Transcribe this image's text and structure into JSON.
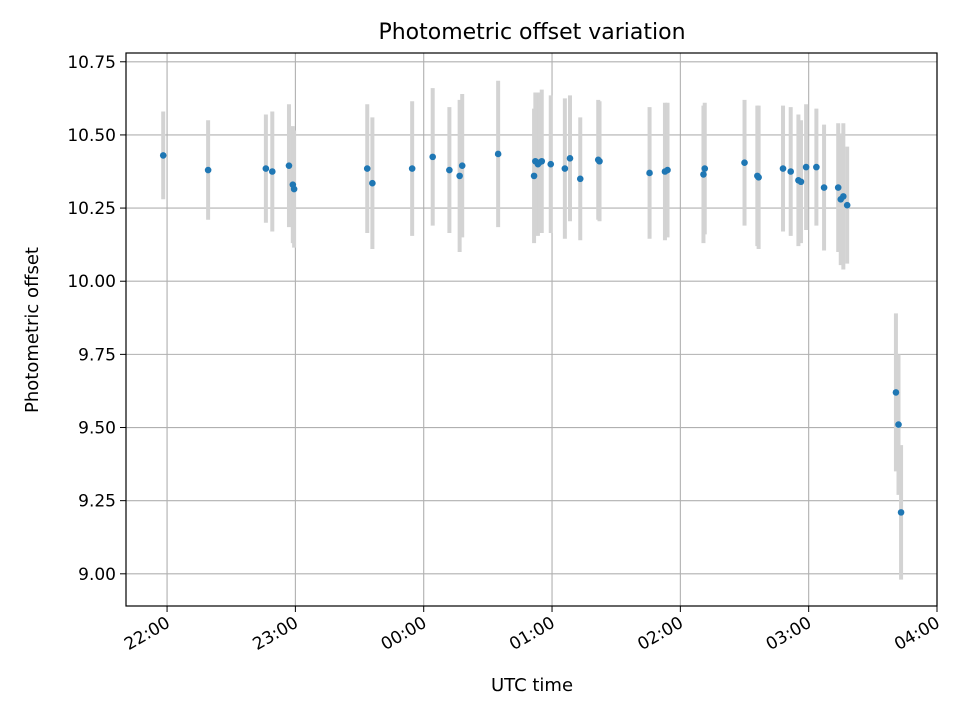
{
  "chart_data": {
    "type": "scatter",
    "title": "Photometric offset variation",
    "xlabel": "UTC time",
    "ylabel": "Photometric offset",
    "x_unit": "hours since 00:00 UTC (negative = previous day)",
    "xlim": [
      -2.32,
      4.0
    ],
    "ylim": [
      8.89,
      10.78
    ],
    "x_ticks": [
      {
        "value": -2,
        "label": "22:00"
      },
      {
        "value": -1,
        "label": "23:00"
      },
      {
        "value": 0,
        "label": "00:00"
      },
      {
        "value": 1,
        "label": "01:00"
      },
      {
        "value": 2,
        "label": "02:00"
      },
      {
        "value": 3,
        "label": "03:00"
      },
      {
        "value": 4,
        "label": "04:00"
      }
    ],
    "y_ticks": [
      9.0,
      9.25,
      9.5,
      9.75,
      10.0,
      10.25,
      10.5,
      10.75
    ],
    "y_tick_labels": [
      "9.00",
      "9.25",
      "9.50",
      "9.75",
      "10.00",
      "10.25",
      "10.50",
      "10.75"
    ],
    "grid": true,
    "marker_color": "#1f77b4",
    "errorbar_color": "#d3d3d3",
    "points": [
      {
        "time": "21:58",
        "x": -2.03,
        "y": 10.43,
        "err": 0.15
      },
      {
        "time": "22:20",
        "x": -1.68,
        "y": 10.38,
        "err": 0.17
      },
      {
        "time": "22:47",
        "x": -1.23,
        "y": 10.385,
        "err": 0.185
      },
      {
        "time": "22:50",
        "x": -1.18,
        "y": 10.375,
        "err": 0.205
      },
      {
        "time": "22:57",
        "x": -1.05,
        "y": 10.395,
        "err": 0.21
      },
      {
        "time": "22:59",
        "x": -1.02,
        "y": 10.33,
        "err": 0.2
      },
      {
        "time": "22:59",
        "x": -1.01,
        "y": 10.315,
        "err": 0.2
      },
      {
        "time": "23:34",
        "x": -0.44,
        "y": 10.385,
        "err": 0.22
      },
      {
        "time": "23:36",
        "x": -0.4,
        "y": 10.335,
        "err": 0.225
      },
      {
        "time": "23:55",
        "x": -0.09,
        "y": 10.385,
        "err": 0.23
      },
      {
        "time": "00:04",
        "x": 0.07,
        "y": 10.425,
        "err": 0.235
      },
      {
        "time": "00:12",
        "x": 0.2,
        "y": 10.38,
        "err": 0.215
      },
      {
        "time": "00:17",
        "x": 0.28,
        "y": 10.36,
        "err": 0.26
      },
      {
        "time": "00:18",
        "x": 0.3,
        "y": 10.395,
        "err": 0.245
      },
      {
        "time": "00:35",
        "x": 0.58,
        "y": 10.435,
        "err": 0.25
      },
      {
        "time": "00:52",
        "x": 0.86,
        "y": 10.36,
        "err": 0.23
      },
      {
        "time": "00:52",
        "x": 0.87,
        "y": 10.41,
        "err": 0.235
      },
      {
        "time": "00:53",
        "x": 0.89,
        "y": 10.4,
        "err": 0.245
      },
      {
        "time": "00:54",
        "x": 0.9,
        "y": 10.405,
        "err": 0.24
      },
      {
        "time": "00:55",
        "x": 0.92,
        "y": 10.41,
        "err": 0.245
      },
      {
        "time": "00:59",
        "x": 0.99,
        "y": 10.4,
        "err": 0.235
      },
      {
        "time": "01:06",
        "x": 1.1,
        "y": 10.385,
        "err": 0.24
      },
      {
        "time": "01:08",
        "x": 1.14,
        "y": 10.42,
        "err": 0.215
      },
      {
        "time": "01:13",
        "x": 1.22,
        "y": 10.35,
        "err": 0.21
      },
      {
        "time": "01:22",
        "x": 1.36,
        "y": 10.415,
        "err": 0.205
      },
      {
        "time": "01:22",
        "x": 1.37,
        "y": 10.41,
        "err": 0.205
      },
      {
        "time": "01:45",
        "x": 1.76,
        "y": 10.37,
        "err": 0.225
      },
      {
        "time": "01:53",
        "x": 1.88,
        "y": 10.375,
        "err": 0.235
      },
      {
        "time": "01:54",
        "x": 1.9,
        "y": 10.38,
        "err": 0.23
      },
      {
        "time": "02:11",
        "x": 2.18,
        "y": 10.365,
        "err": 0.235
      },
      {
        "time": "02:11",
        "x": 2.19,
        "y": 10.385,
        "err": 0.225
      },
      {
        "time": "02:30",
        "x": 2.5,
        "y": 10.405,
        "err": 0.215
      },
      {
        "time": "02:36",
        "x": 2.6,
        "y": 10.36,
        "err": 0.24
      },
      {
        "time": "02:36",
        "x": 2.61,
        "y": 10.355,
        "err": 0.245
      },
      {
        "time": "02:48",
        "x": 2.8,
        "y": 10.385,
        "err": 0.215
      },
      {
        "time": "02:52",
        "x": 2.86,
        "y": 10.375,
        "err": 0.22
      },
      {
        "time": "02:55",
        "x": 2.92,
        "y": 10.345,
        "err": 0.225
      },
      {
        "time": "02:56",
        "x": 2.94,
        "y": 10.34,
        "err": 0.21
      },
      {
        "time": "02:58",
        "x": 2.98,
        "y": 10.39,
        "err": 0.215
      },
      {
        "time": "03:04",
        "x": 3.06,
        "y": 10.39,
        "err": 0.2
      },
      {
        "time": "03:07",
        "x": 3.12,
        "y": 10.32,
        "err": 0.215
      },
      {
        "time": "03:14",
        "x": 3.23,
        "y": 10.32,
        "err": 0.22
      },
      {
        "time": "03:15",
        "x": 3.25,
        "y": 10.28,
        "err": 0.225
      },
      {
        "time": "03:16",
        "x": 3.27,
        "y": 10.29,
        "err": 0.25
      },
      {
        "time": "03:18",
        "x": 3.3,
        "y": 10.26,
        "err": 0.2
      },
      {
        "time": "03:41",
        "x": 3.68,
        "y": 9.62,
        "err": 0.27
      },
      {
        "time": "03:42",
        "x": 3.7,
        "y": 9.51,
        "err": 0.24
      },
      {
        "time": "03:43",
        "x": 3.72,
        "y": 9.21,
        "err": 0.23
      }
    ]
  }
}
